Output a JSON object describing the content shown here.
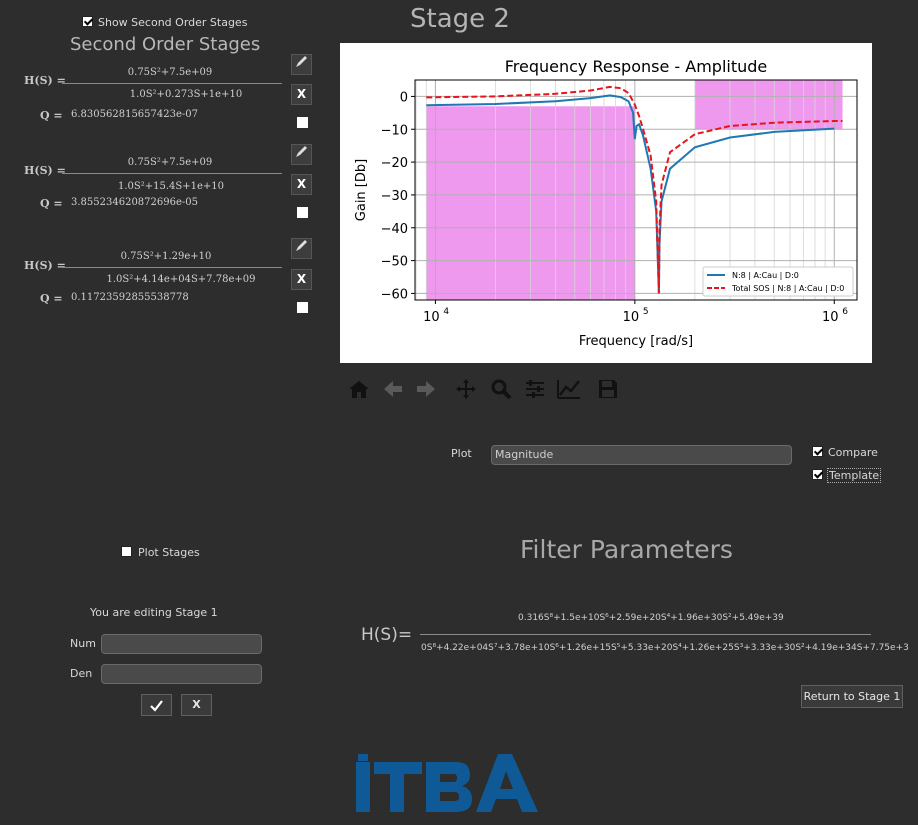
{
  "stage_title": "Stage 2",
  "left": {
    "show_second_order_label": "Show Second Order Stages",
    "section_title": "Second Order Stages",
    "hs_label": "H(S) =",
    "q_label": "Q =",
    "stages": [
      {
        "num": "0.75S²+7.5e+09",
        "den": "1.0S²+0.273S+1e+10",
        "q": "6.830562815657423e-07"
      },
      {
        "num": "0.75S²+7.5e+09",
        "den": "1.0S²+15.4S+1e+10",
        "q": "3.855234620872696e-05"
      },
      {
        "num": "0.75S²+1.29e+10",
        "den": "1.0S²+4.14e+04S+7.78e+09",
        "q": "0.11723592855538778"
      }
    ],
    "close_label": "X",
    "plot_stages_label": "Plot Stages",
    "editing_label": "You are editing  Stage 1",
    "num_label": "Num",
    "den_label": "Den",
    "confirm_icon": "check-icon",
    "cancel_label": "X"
  },
  "chart": {
    "title": "Frequency Response - Amplitude",
    "xlabel": "Frequency [rad/s]",
    "ylabel": "Gain [Db]",
    "yticks": [
      "0",
      "−10",
      "−20",
      "−30",
      "−40",
      "−50",
      "−60"
    ],
    "xticks": [
      "10",
      "10",
      "10"
    ],
    "xtick_exps": [
      "4",
      "5",
      "6"
    ],
    "legend": [
      "N:8 | A:Cau | D:0",
      "Total SOS | N:8 | A:Cau | D:0"
    ],
    "colors": {
      "series1": "#1f77b4",
      "series2": "#e8141c",
      "template": "#ee99ee"
    }
  },
  "chart_data": {
    "type": "line",
    "title": "Frequency Response - Amplitude",
    "xlabel": "Frequency [rad/s]",
    "ylabel": "Gain [Db]",
    "xscale": "log",
    "xlim": [
      7900,
      1300000
    ],
    "ylim": [
      -62,
      5
    ],
    "grid": true,
    "legend_position": "bottom-right",
    "series": [
      {
        "name": "N:8 | A:Cau | D:0",
        "x": [
          9000,
          20000,
          40000,
          60000,
          75000,
          85000,
          93000,
          98000,
          100000,
          102000,
          105000,
          110000,
          120000,
          128000,
          132000,
          133000,
          136000,
          150000,
          200000,
          300000,
          500000,
          1000000
        ],
        "y": [
          -2.7,
          -2.3,
          -1.5,
          -0.5,
          0.3,
          -0.2,
          -1.5,
          -5,
          -13,
          -9,
          -8.5,
          -12,
          -22,
          -35,
          -60,
          -45,
          -32,
          -22,
          -15.5,
          -12.5,
          -10.8,
          -9.8
        ]
      },
      {
        "name": "Total SOS | N:8 | A:Cau | D:0",
        "x": [
          9000,
          20000,
          40000,
          60000,
          75000,
          85000,
          93000,
          100000,
          105000,
          110000,
          120000,
          128000,
          132000,
          133000,
          136000,
          150000,
          200000,
          300000,
          500000,
          1000000,
          1100000
        ],
        "y": [
          -0.3,
          0.0,
          0.8,
          1.8,
          2.9,
          2.5,
          1.0,
          -2.5,
          -6,
          -10,
          -18,
          -32,
          -60,
          -40,
          -27,
          -17,
          -11.5,
          -9,
          -8,
          -7.5,
          -7.5
        ]
      }
    ],
    "template_regions": [
      {
        "x": [
          9000,
          100000
        ],
        "y": [
          -62,
          -3
        ]
      },
      {
        "x": [
          200000,
          1100000
        ],
        "y": [
          -10,
          5
        ]
      }
    ]
  },
  "toolbar": {
    "icons": [
      "home-icon",
      "back-arrow-icon",
      "forward-arrow-icon",
      "pan-icon",
      "zoom-icon",
      "configure-icon",
      "edit-curve-icon",
      "save-icon"
    ]
  },
  "plot_controls": {
    "plot_label": "Plot",
    "plot_value": "Magnitude",
    "compare_label": "Compare",
    "template_label": "Template"
  },
  "filter": {
    "title": "Filter Parameters",
    "hs_label": "H(S)=",
    "num": "0.316S⁸+1.5e+10S⁶+2.59e+20S⁴+1.96e+30S²+5.49e+39",
    "den": "0S⁸+4.22e+04S⁷+3.78e+10S⁶+1.26e+15S⁵+5.33e+20S⁴+1.26e+25S³+3.33e+30S²+4.19e+34S+7.75e+3",
    "return_label": "Return to Stage 1"
  },
  "logo": {
    "text": "ITBA",
    "color": "#0f5a96"
  }
}
